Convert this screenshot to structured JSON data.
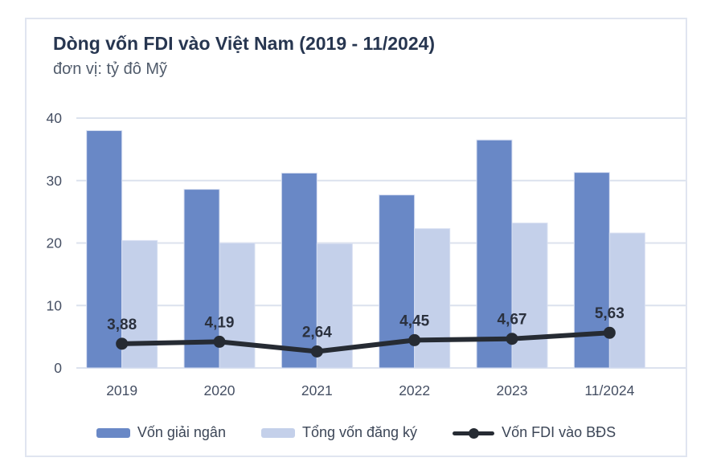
{
  "header": {
    "title": "Dòng vốn FDI vào Việt Nam (2019 - 11/2024)",
    "unit": "đơn vị: tỷ đô Mỹ"
  },
  "colors": {
    "bar_dark": "#6988c6",
    "bar_light": "#c4d0ea",
    "bar_stroke": "#d9e0f2",
    "line": "#262b33",
    "grid": "#dce2ee",
    "axis_text": "#454f63",
    "title_text": "#273650",
    "subtitle_text": "#505b6b",
    "data_label_text": "#2b313e",
    "card_border": "#e0e5f0"
  },
  "chart_data": {
    "type": "combo-bar-line",
    "title": "Dòng vốn FDI vào Việt Nam (2019 - 11/2024)",
    "unit_label": "đơn vị: tỷ đô Mỹ",
    "categories": [
      "2019",
      "2020",
      "2021",
      "2022",
      "2023",
      "11/2024"
    ],
    "series": [
      {
        "name": "Vốn giải ngân",
        "type": "bar",
        "values": [
          38.0,
          28.6,
          31.2,
          27.7,
          36.5,
          31.3
        ]
      },
      {
        "name": "Tổng vốn đăng ký",
        "type": "bar",
        "values": [
          20.4,
          20.0,
          19.9,
          22.3,
          23.2,
          21.6
        ]
      },
      {
        "name": "Vốn FDI vào BĐS",
        "type": "line",
        "values": [
          3.88,
          4.19,
          2.64,
          4.45,
          4.67,
          5.63
        ],
        "point_labels": [
          "3,88",
          "4,19",
          "2,64",
          "4,45",
          "4,67",
          "5,63"
        ]
      }
    ],
    "ylim": [
      0,
      40
    ],
    "yticks": [
      0,
      10,
      20,
      30,
      40
    ],
    "grid": true,
    "legend_position": "bottom"
  }
}
